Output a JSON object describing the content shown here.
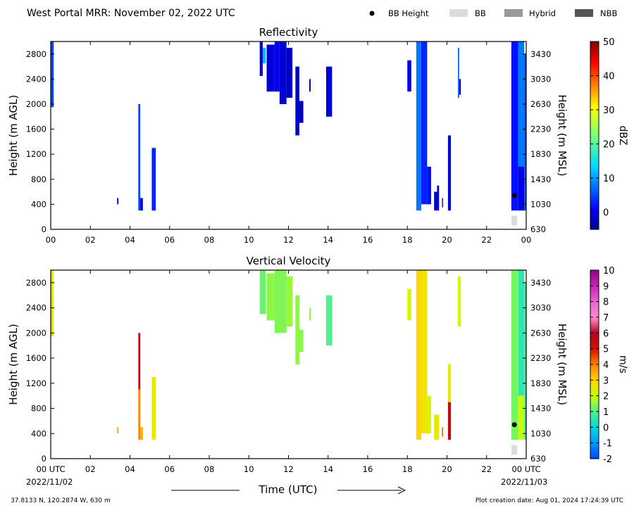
{
  "header": {
    "title": "West Portal MRR:  November 02, 2022 UTC",
    "legend": [
      {
        "label": "BB Height",
        "symbol": "dot",
        "color": "#000000"
      },
      {
        "label": "BB",
        "symbol": "box",
        "color": "#dcdcdc"
      },
      {
        "label": "Hybrid",
        "symbol": "box",
        "color": "#999999"
      },
      {
        "label": "NBB",
        "symbol": "box",
        "color": "#555555"
      }
    ]
  },
  "x_axis": {
    "label": "Time (UTC)",
    "start_date": "2022/11/02",
    "end_date": "2022/11/03",
    "tick_labels": [
      "00 UTC",
      "02",
      "04",
      "06",
      "08",
      "10",
      "12",
      "14",
      "16",
      "18",
      "20",
      "22",
      "00 UTC"
    ],
    "range_hours": [
      0,
      24
    ]
  },
  "footer": {
    "location": "37.8133 N, 120.2874 W, 630 m",
    "creation": "Plot creation date: Aug 01, 2024 17:24:39 UTC"
  },
  "chart_data": [
    {
      "type": "heatmap",
      "title": "Reflectivity",
      "ylabel": "Height (m AGL)",
      "ylabel_right": "Height (m MSL)",
      "x_ticks": [
        "00",
        "02",
        "04",
        "06",
        "08",
        "10",
        "12",
        "14",
        "16",
        "18",
        "20",
        "22",
        "00"
      ],
      "y_ticks": [
        0,
        400,
        800,
        1200,
        1600,
        2000,
        2400,
        2800
      ],
      "y_ticks_right": [
        630,
        1030,
        1430,
        1830,
        2230,
        2630,
        3030,
        3430
      ],
      "xlim": [
        0,
        24
      ],
      "ylim": [
        0,
        3000
      ],
      "colorbar": {
        "label": "dBZ",
        "range": [
          -5,
          50
        ],
        "ticks": [
          0,
          10,
          20,
          30,
          40,
          50
        ]
      },
      "bright_band": [
        {
          "time": 23.4,
          "height": 540,
          "type": "BB"
        }
      ],
      "echoes": [
        {
          "t0": 0.0,
          "t1": 0.15,
          "h0": 1950,
          "h1": 3000,
          "value": 5
        },
        {
          "t0": 3.35,
          "t1": 3.42,
          "h0": 400,
          "h1": 500,
          "value": -1
        },
        {
          "t0": 4.42,
          "t1": 4.52,
          "h0": 300,
          "h1": 2000,
          "value": 5
        },
        {
          "t0": 4.52,
          "t1": 4.65,
          "h0": 300,
          "h1": 500,
          "value": -2
        },
        {
          "t0": 5.1,
          "t1": 5.3,
          "h0": 300,
          "h1": 1300,
          "value": 3
        },
        {
          "t0": 10.55,
          "t1": 10.7,
          "h0": 2450,
          "h1": 3000,
          "value": -1
        },
        {
          "t0": 10.7,
          "t1": 10.85,
          "h0": 2650,
          "h1": 2900,
          "value": 12
        },
        {
          "t0": 10.9,
          "t1": 11.3,
          "h0": 2200,
          "h1": 2950,
          "value": -1
        },
        {
          "t0": 11.3,
          "t1": 11.55,
          "h0": 2200,
          "h1": 3000,
          "value": 0
        },
        {
          "t0": 11.55,
          "t1": 11.9,
          "h0": 2000,
          "h1": 3000,
          "value": -1
        },
        {
          "t0": 11.9,
          "t1": 12.2,
          "h0": 2100,
          "h1": 2900,
          "value": -2
        },
        {
          "t0": 12.35,
          "t1": 12.55,
          "h0": 1500,
          "h1": 2600,
          "value": -2
        },
        {
          "t0": 12.55,
          "t1": 12.75,
          "h0": 1700,
          "h1": 2050,
          "value": -2
        },
        {
          "t0": 13.05,
          "t1": 13.12,
          "h0": 2200,
          "h1": 2400,
          "value": -2
        },
        {
          "t0": 13.9,
          "t1": 14.2,
          "h0": 1800,
          "h1": 2600,
          "value": -1
        },
        {
          "t0": 18.0,
          "t1": 18.2,
          "h0": 2200,
          "h1": 2700,
          "value": 0
        },
        {
          "t0": 18.45,
          "t1": 18.7,
          "h0": 300,
          "h1": 3000,
          "value": 8
        },
        {
          "t0": 18.7,
          "t1": 19.0,
          "h0": 400,
          "h1": 3000,
          "value": 3
        },
        {
          "t0": 19.0,
          "t1": 19.2,
          "h0": 400,
          "h1": 1000,
          "value": 2
        },
        {
          "t0": 19.35,
          "t1": 19.5,
          "h0": 300,
          "h1": 600,
          "value": -2
        },
        {
          "t0": 19.5,
          "t1": 19.6,
          "h0": 300,
          "h1": 700,
          "value": -1
        },
        {
          "t0": 19.75,
          "t1": 19.8,
          "h0": 350,
          "h1": 500,
          "value": 0
        },
        {
          "t0": 20.05,
          "t1": 20.2,
          "h0": 300,
          "h1": 1500,
          "value": -1
        },
        {
          "t0": 20.55,
          "t1": 20.62,
          "h0": 2100,
          "h1": 2900,
          "value": 8
        },
        {
          "t0": 20.62,
          "t1": 20.7,
          "h0": 2150,
          "h1": 2400,
          "value": 0
        },
        {
          "t0": 23.25,
          "t1": 23.6,
          "h0": 300,
          "h1": 3000,
          "value": 2
        },
        {
          "t0": 23.6,
          "t1": 23.9,
          "h0": 1000,
          "h1": 3000,
          "value": 8
        },
        {
          "t0": 23.6,
          "t1": 23.9,
          "h0": 300,
          "h1": 1000,
          "value": 0
        },
        {
          "t0": 23.9,
          "t1": 24.0,
          "h0": 300,
          "h1": 2800,
          "value": 5
        }
      ]
    },
    {
      "type": "heatmap",
      "title": "Vertical Velocity",
      "ylabel": "Height (m AGL)",
      "ylabel_right": "Height (m MSL)",
      "x_ticks": [
        "00 UTC",
        "02",
        "04",
        "06",
        "08",
        "10",
        "12",
        "14",
        "16",
        "18",
        "20",
        "22",
        "00 UTC"
      ],
      "y_ticks": [
        0,
        400,
        800,
        1200,
        1600,
        2000,
        2400,
        2800
      ],
      "y_ticks_right": [
        630,
        1030,
        1430,
        1830,
        2230,
        2630,
        3030,
        3430
      ],
      "xlim": [
        0,
        24
      ],
      "ylim": [
        0,
        3000
      ],
      "colorbar": {
        "label": "m/s",
        "range": [
          -2,
          10
        ],
        "ticks": [
          -2,
          -1,
          0,
          1,
          2,
          3,
          4,
          5,
          6,
          7,
          8,
          9,
          10
        ]
      },
      "bright_band": [
        {
          "time": 23.4,
          "height": 540,
          "type": "BB"
        }
      ],
      "echoes": [
        {
          "t0": 0.0,
          "t1": 0.15,
          "h0": 1950,
          "h1": 3000,
          "value": 2.5
        },
        {
          "t0": 3.35,
          "t1": 3.42,
          "h0": 400,
          "h1": 500,
          "value": 3.5
        },
        {
          "t0": 4.42,
          "t1": 4.52,
          "h0": 1100,
          "h1": 2000,
          "value": 5.5
        },
        {
          "t0": 4.42,
          "t1": 4.52,
          "h0": 300,
          "h1": 1100,
          "value": 4.0
        },
        {
          "t0": 4.52,
          "t1": 4.65,
          "h0": 300,
          "h1": 500,
          "value": 3.5
        },
        {
          "t0": 5.1,
          "t1": 5.3,
          "h0": 300,
          "h1": 1300,
          "value": 2.5
        },
        {
          "t0": 10.55,
          "t1": 10.85,
          "h0": 2300,
          "h1": 3000,
          "value": 1.2
        },
        {
          "t0": 10.9,
          "t1": 11.3,
          "h0": 2200,
          "h1": 2950,
          "value": 1.5
        },
        {
          "t0": 11.3,
          "t1": 11.9,
          "h0": 2000,
          "h1": 3000,
          "value": 1.4
        },
        {
          "t0": 11.9,
          "t1": 12.2,
          "h0": 2100,
          "h1": 2900,
          "value": 1.6
        },
        {
          "t0": 12.35,
          "t1": 12.55,
          "h0": 1500,
          "h1": 2600,
          "value": 1.5
        },
        {
          "t0": 12.55,
          "t1": 12.75,
          "h0": 1700,
          "h1": 2050,
          "value": 1.5
        },
        {
          "t0": 13.05,
          "t1": 13.12,
          "h0": 2200,
          "h1": 2400,
          "value": 1.5
        },
        {
          "t0": 13.9,
          "t1": 14.2,
          "h0": 1800,
          "h1": 2600,
          "value": 1.0
        },
        {
          "t0": 18.0,
          "t1": 18.2,
          "h0": 2200,
          "h1": 2700,
          "value": 2.2
        },
        {
          "t0": 18.45,
          "t1": 18.7,
          "h0": 300,
          "h1": 3000,
          "value": 3.0
        },
        {
          "t0": 18.7,
          "t1": 19.0,
          "h0": 400,
          "h1": 3000,
          "value": 2.7
        },
        {
          "t0": 19.0,
          "t1": 19.2,
          "h0": 400,
          "h1": 1000,
          "value": 2.3
        },
        {
          "t0": 19.35,
          "t1": 19.5,
          "h0": 300,
          "h1": 700,
          "value": 2.5
        },
        {
          "t0": 19.5,
          "t1": 19.6,
          "h0": 300,
          "h1": 700,
          "value": 2.5
        },
        {
          "t0": 19.75,
          "t1": 19.8,
          "h0": 350,
          "h1": 500,
          "value": 4.5
        },
        {
          "t0": 20.05,
          "t1": 20.2,
          "h0": 300,
          "h1": 900,
          "value": 5.5
        },
        {
          "t0": 20.05,
          "t1": 20.2,
          "h0": 900,
          "h1": 1500,
          "value": 2.5
        },
        {
          "t0": 20.55,
          "t1": 20.7,
          "h0": 2100,
          "h1": 2900,
          "value": 2.0
        },
        {
          "t0": 23.25,
          "t1": 23.6,
          "h0": 300,
          "h1": 3000,
          "value": 1.3
        },
        {
          "t0": 23.6,
          "t1": 23.9,
          "h0": 1000,
          "h1": 3000,
          "value": 0.6
        },
        {
          "t0": 23.6,
          "t1": 23.9,
          "h0": 300,
          "h1": 1000,
          "value": 2.0
        },
        {
          "t0": 23.9,
          "t1": 24.0,
          "h0": 300,
          "h1": 2800,
          "value": 0.8
        }
      ]
    }
  ]
}
